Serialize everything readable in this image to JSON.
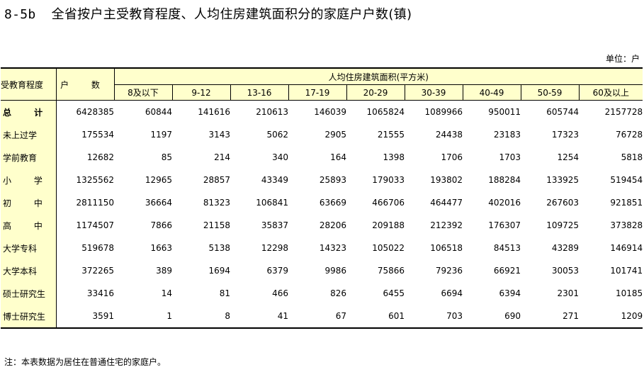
{
  "title": {
    "code": "8-5b",
    "text": "全省按户主受教育程度、人均住房建筑面积分的家庭户户数(镇)"
  },
  "unit": "单位：户",
  "table": {
    "row_header": "受教育程度",
    "count_header": "户 数",
    "group_header": "人均住房建筑面积(平方米)",
    "area_columns": [
      "8及以下",
      "9-12",
      "13-16",
      "17-19",
      "20-29",
      "30-39",
      "40-49",
      "50-59",
      "60及以上"
    ],
    "rows": [
      {
        "label": "总 计",
        "values": [
          "6428385",
          "60844",
          "141616",
          "210613",
          "146039",
          "1065824",
          "1089966",
          "950011",
          "605744",
          "2157728"
        ]
      },
      {
        "label": "未上过学",
        "values": [
          "175534",
          "1197",
          "3143",
          "5062",
          "2905",
          "21555",
          "24438",
          "23183",
          "17323",
          "76728"
        ]
      },
      {
        "label": "学前教育",
        "values": [
          "12682",
          "85",
          "214",
          "340",
          "164",
          "1398",
          "1706",
          "1703",
          "1254",
          "5818"
        ]
      },
      {
        "label": "小 学",
        "values": [
          "1325562",
          "12965",
          "28857",
          "43349",
          "25893",
          "179033",
          "193802",
          "188284",
          "133925",
          "519454"
        ]
      },
      {
        "label": "初 中",
        "values": [
          "2811150",
          "36664",
          "81323",
          "106841",
          "63669",
          "466706",
          "464477",
          "402016",
          "267603",
          "921851"
        ]
      },
      {
        "label": "高 中",
        "values": [
          "1174507",
          "7866",
          "21158",
          "35837",
          "28206",
          "209188",
          "212392",
          "176307",
          "109725",
          "373828"
        ]
      },
      {
        "label": "大学专科",
        "values": [
          "519678",
          "1663",
          "5138",
          "12298",
          "14323",
          "105022",
          "106518",
          "84513",
          "43289",
          "146914"
        ]
      },
      {
        "label": "大学本科",
        "values": [
          "372265",
          "389",
          "1694",
          "6379",
          "9986",
          "75866",
          "79236",
          "66921",
          "30053",
          "101741"
        ]
      },
      {
        "label": "硕士研究生",
        "values": [
          "33416",
          "14",
          "81",
          "466",
          "826",
          "6455",
          "6694",
          "6394",
          "2301",
          "10185"
        ]
      },
      {
        "label": "博士研究生",
        "values": [
          "3591",
          "1",
          "8",
          "41",
          "67",
          "601",
          "703",
          "690",
          "271",
          "1209"
        ]
      }
    ]
  },
  "note": "注：本表数据为居住在普通住宅的家庭户。"
}
